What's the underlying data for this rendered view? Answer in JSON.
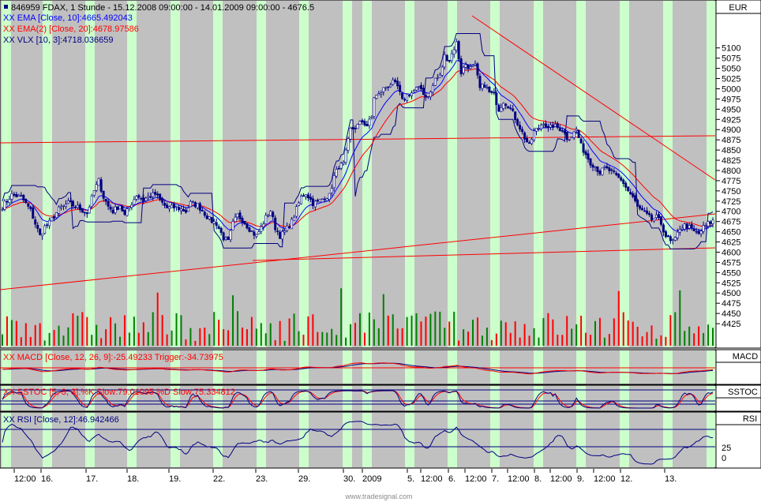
{
  "header": {
    "symbol_line": "846959  FDAX, 1 Stunde - 15.12.2008 09:00:00 - 14.01.2009 09:00:00 - 4676.5",
    "ema_line": "XX EMA [Close, 10]:4665.492043",
    "ema2_line": "XX EMA(2) [Close, 20]:4678.97586",
    "vlx_line": "XX VLX [10, 3]:4718.036659",
    "currency": "EUR"
  },
  "panes": {
    "macd_label": "XX MACD [Close, 12, 26, 9]:-25.49233  Trigger:-34.73975",
    "macd_tag": "MACD",
    "sstoc_label": "XX SSTOC [5, 3, 3]:%K Slow:79.01095  %D Slow:75.334812",
    "sstoc_tag": "SSTOC",
    "rsi_label": "XX RSI [Close, 12]:46.942466",
    "rsi_tag": "RSI",
    "rsi_ticks": [
      "25",
      "0"
    ]
  },
  "footer": {
    "watermark": "www.tradesignal.com"
  },
  "colors": {
    "plot_bg": "#c0c0c0",
    "session_band": "#ccffcc",
    "candle": "#000080",
    "ema": "#0000ff",
    "ema2": "#ff0000",
    "vlx": "#000080",
    "trendline": "#ff0000",
    "vol_up": "#008000",
    "vol_down": "#ff0000"
  },
  "chart_data": {
    "type": "candlestick",
    "ylim": [
      4400,
      5140
    ],
    "yticks": [
      "5100",
      "5075",
      "5050",
      "5025",
      "5000",
      "4975",
      "4950",
      "4925",
      "4900",
      "4875",
      "4850",
      "4825",
      "4800",
      "4775",
      "4750",
      "4725",
      "4700",
      "4675",
      "4650",
      "4625",
      "4600",
      "4575",
      "4550",
      "4525",
      "4500",
      "4475",
      "4450",
      "4425"
    ],
    "xticks": [
      "12:00",
      "16.",
      "17.",
      "18.",
      "19.",
      "22.",
      "23.",
      "29.",
      "30.",
      "2009",
      "5.",
      "12:00",
      "6.",
      "12:00",
      "7.",
      "12:00",
      "8.",
      "12:00",
      "9.",
      "12:00",
      "12.",
      "13."
    ],
    "close_path": [
      [
        0,
        4712
      ],
      [
        4,
        4740
      ],
      [
        8,
        4735
      ],
      [
        12,
        4702
      ],
      [
        14,
        4670
      ],
      [
        16,
        4640
      ],
      [
        18,
        4662
      ],
      [
        20,
        4672
      ],
      [
        24,
        4705
      ],
      [
        28,
        4720
      ],
      [
        32,
        4710
      ],
      [
        36,
        4695
      ],
      [
        39,
        4750
      ],
      [
        41,
        4775
      ],
      [
        43,
        4735
      ],
      [
        45,
        4712
      ],
      [
        47,
        4700
      ],
      [
        50,
        4715
      ],
      [
        52,
        4690
      ],
      [
        55,
        4720
      ],
      [
        57,
        4740
      ],
      [
        60,
        4728
      ],
      [
        62,
        4735
      ],
      [
        65,
        4742
      ],
      [
        68,
        4720
      ],
      [
        70,
        4708
      ],
      [
        74,
        4710
      ],
      [
        78,
        4700
      ],
      [
        80,
        4720
      ],
      [
        83,
        4715
      ],
      [
        86,
        4695
      ],
      [
        88,
        4680
      ],
      [
        91,
        4670
      ],
      [
        94,
        4635
      ],
      [
        96,
        4625
      ],
      [
        98,
        4670
      ],
      [
        100,
        4690
      ],
      [
        102,
        4680
      ],
      [
        104,
        4665
      ],
      [
        106,
        4650
      ],
      [
        108,
        4640
      ],
      [
        110,
        4660
      ],
      [
        112,
        4685
      ],
      [
        114,
        4702
      ],
      [
        116,
        4660
      ],
      [
        118,
        4640
      ],
      [
        120,
        4650
      ],
      [
        123,
        4675
      ],
      [
        125,
        4705
      ],
      [
        127,
        4735
      ],
      [
        129,
        4745
      ],
      [
        132,
        4720
      ],
      [
        134,
        4722
      ],
      [
        137,
        4735
      ],
      [
        139,
        4738
      ],
      [
        141,
        4785
      ],
      [
        143,
        4810
      ],
      [
        145,
        4815
      ],
      [
        148,
        4900
      ],
      [
        150,
        4905
      ],
      [
        153,
        4920
      ],
      [
        155,
        4910
      ],
      [
        157,
        4930
      ],
      [
        158,
        4980
      ],
      [
        160,
        4985
      ],
      [
        162,
        5000
      ],
      [
        164,
        5008
      ],
      [
        166,
        5015
      ],
      [
        168,
        5005
      ],
      [
        170,
        4970
      ],
      [
        172,
        4985
      ],
      [
        174,
        4990
      ],
      [
        176,
        5000
      ],
      [
        178,
        5000
      ],
      [
        180,
        4980
      ],
      [
        182,
        4990
      ],
      [
        184,
        5025
      ],
      [
        186,
        5030
      ],
      [
        188,
        5080
      ],
      [
        190,
        5070
      ],
      [
        192,
        5100
      ],
      [
        193,
        5112
      ],
      [
        195,
        5040
      ],
      [
        197,
        5060
      ],
      [
        199,
        5050
      ],
      [
        201,
        5055
      ],
      [
        203,
        5000
      ],
      [
        205,
        5010
      ],
      [
        207,
        4990
      ],
      [
        209,
        4985
      ],
      [
        211,
        4950
      ],
      [
        213,
        4970
      ],
      [
        215,
        4960
      ],
      [
        217,
        4940
      ],
      [
        220,
        4905
      ],
      [
        222,
        4880
      ],
      [
        224,
        4860
      ],
      [
        226,
        4895
      ],
      [
        228,
        4905
      ],
      [
        230,
        4920
      ],
      [
        232,
        4900
      ],
      [
        234,
        4910
      ],
      [
        236,
        4905
      ],
      [
        238,
        4900
      ],
      [
        240,
        4880
      ],
      [
        242,
        4885
      ],
      [
        244,
        4900
      ],
      [
        246,
        4860
      ],
      [
        248,
        4840
      ],
      [
        250,
        4820
      ],
      [
        252,
        4810
      ],
      [
        254,
        4795
      ],
      [
        256,
        4805
      ],
      [
        258,
        4800
      ],
      [
        260,
        4790
      ],
      [
        262,
        4780
      ],
      [
        264,
        4770
      ],
      [
        266,
        4750
      ],
      [
        268,
        4735
      ],
      [
        270,
        4710
      ],
      [
        272,
        4700
      ],
      [
        274,
        4690
      ],
      [
        276,
        4680
      ],
      [
        278,
        4685
      ],
      [
        280,
        4670
      ],
      [
        282,
        4640
      ],
      [
        284,
        4625
      ],
      [
        286,
        4630
      ],
      [
        288,
        4660
      ],
      [
        290,
        4665
      ],
      [
        292,
        4660
      ],
      [
        294,
        4650
      ],
      [
        296,
        4645
      ],
      [
        298,
        4660
      ],
      [
        300,
        4670
      ],
      [
        302,
        4676
      ]
    ],
    "overlays": [
      "EMA 10",
      "EMA(2) 20",
      "VLX 10,3"
    ],
    "indicator_panes": [
      "MACD",
      "SSTOC",
      "RSI"
    ]
  }
}
